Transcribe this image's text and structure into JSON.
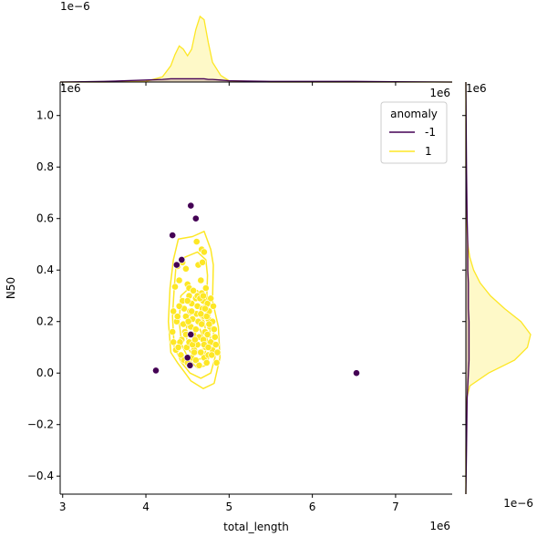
{
  "chart_data": {
    "type": "scatter",
    "xlabel": "total_length",
    "ylabel": "N50",
    "x_offset_label": "1e6",
    "y_offset_label": "1e6",
    "top_marginal_offset_label": "1e−6",
    "right_marginal_offset_label": "1e−6",
    "right_top_offset_label": "1e6",
    "xlim": [
      2.97,
      7.68
    ],
    "ylim": [
      -0.47,
      1.13
    ],
    "x_ticks": [
      3,
      4,
      5,
      6,
      7
    ],
    "y_ticks": [
      -0.4,
      -0.2,
      0.0,
      0.2,
      0.4,
      0.6,
      0.8,
      1.0
    ],
    "x_tick_labels": [
      "3",
      "4",
      "5",
      "6",
      "7"
    ],
    "y_tick_labels": [
      "−0.4",
      "−0.2",
      "0.0",
      "0.2",
      "0.4",
      "0.6",
      "0.8",
      "1.0"
    ],
    "legend": {
      "title": "anomaly",
      "placement": "top-right",
      "entries": [
        {
          "label": "-1",
          "color": "#440154"
        },
        {
          "label": "1",
          "color": "#fde725"
        }
      ]
    },
    "series": [
      {
        "name": "1",
        "color": "#fde725",
        "points": [
          [
            4.38,
            0.415
          ],
          [
            4.44,
            0.43
          ],
          [
            4.48,
            0.405
          ],
          [
            4.4,
            0.36
          ],
          [
            4.35,
            0.335
          ],
          [
            4.5,
            0.345
          ],
          [
            4.52,
            0.33
          ],
          [
            4.33,
            0.24
          ],
          [
            4.37,
            0.2
          ],
          [
            4.32,
            0.16
          ],
          [
            4.33,
            0.12
          ],
          [
            4.36,
            0.09
          ],
          [
            4.42,
            0.07
          ],
          [
            4.46,
            0.05
          ],
          [
            4.5,
            0.04
          ],
          [
            4.55,
            0.06
          ],
          [
            4.6,
            0.05
          ],
          [
            4.65,
            0.08
          ],
          [
            4.7,
            0.06
          ],
          [
            4.75,
            0.07
          ],
          [
            4.8,
            0.09
          ],
          [
            4.44,
            0.28
          ],
          [
            4.46,
            0.25
          ],
          [
            4.48,
            0.22
          ],
          [
            4.45,
            0.19
          ],
          [
            4.47,
            0.16
          ],
          [
            4.43,
            0.13
          ],
          [
            4.49,
            0.1
          ],
          [
            4.52,
            0.3
          ],
          [
            4.55,
            0.27
          ],
          [
            4.53,
            0.24
          ],
          [
            4.56,
            0.21
          ],
          [
            4.54,
            0.18
          ],
          [
            4.57,
            0.15
          ],
          [
            4.52,
            0.12
          ],
          [
            4.58,
            0.09
          ],
          [
            4.6,
            0.29
          ],
          [
            4.62,
            0.26
          ],
          [
            4.61,
            0.23
          ],
          [
            4.63,
            0.2
          ],
          [
            4.6,
            0.17
          ],
          [
            4.64,
            0.14
          ],
          [
            4.62,
            0.11
          ],
          [
            4.66,
            0.08
          ],
          [
            4.67,
            0.31
          ],
          [
            4.69,
            0.28
          ],
          [
            4.68,
            0.25
          ],
          [
            4.7,
            0.22
          ],
          [
            4.67,
            0.19
          ],
          [
            4.71,
            0.16
          ],
          [
            4.69,
            0.13
          ],
          [
            4.72,
            0.1
          ],
          [
            4.74,
            0.27
          ],
          [
            4.76,
            0.24
          ],
          [
            4.75,
            0.21
          ],
          [
            4.77,
            0.18
          ],
          [
            4.74,
            0.15
          ],
          [
            4.78,
            0.12
          ],
          [
            4.8,
            0.2
          ],
          [
            4.82,
            0.17
          ],
          [
            4.83,
            0.14
          ],
          [
            4.84,
            0.11
          ],
          [
            4.86,
            0.08
          ],
          [
            4.79,
            0.07
          ],
          [
            4.85,
            0.04
          ],
          [
            4.73,
            0.04
          ],
          [
            4.64,
            0.03
          ],
          [
            4.58,
            0.08
          ],
          [
            4.61,
            0.51
          ],
          [
            4.63,
            0.42
          ],
          [
            4.66,
            0.36
          ],
          [
            4.67,
            0.48
          ],
          [
            4.7,
            0.47
          ],
          [
            4.68,
            0.43
          ],
          [
            4.62,
            0.3
          ],
          [
            4.65,
            0.29
          ],
          [
            4.71,
            0.25
          ],
          [
            4.73,
            0.22
          ],
          [
            4.76,
            0.19
          ],
          [
            4.55,
            0.24
          ],
          [
            4.51,
            0.2
          ],
          [
            4.48,
            0.15
          ],
          [
            4.4,
            0.26
          ],
          [
            4.38,
            0.22
          ],
          [
            4.41,
            0.12
          ],
          [
            4.39,
            0.1
          ],
          [
            4.56,
            0.11
          ],
          [
            4.59,
            0.13
          ],
          [
            4.72,
            0.33
          ],
          [
            4.78,
            0.29
          ],
          [
            4.81,
            0.26
          ],
          [
            4.66,
            0.23
          ],
          [
            4.7,
            0.11
          ],
          [
            4.75,
            0.1
          ],
          [
            4.5,
            0.28
          ],
          [
            4.57,
            0.32
          ],
          [
            4.69,
            0.3
          ]
        ]
      },
      {
        "name": "-1",
        "color": "#440154",
        "points": [
          [
            4.54,
            0.65
          ],
          [
            4.6,
            0.6
          ],
          [
            4.32,
            0.535
          ],
          [
            4.43,
            0.44
          ],
          [
            4.37,
            0.42
          ],
          [
            4.54,
            0.15
          ],
          [
            4.5,
            0.06
          ],
          [
            4.53,
            0.03
          ],
          [
            4.12,
            0.01
          ],
          [
            6.53,
            0.0
          ]
        ]
      }
    ],
    "kde_contour_1": {
      "color": "#fde725",
      "levels": [
        [
          [
            4.33,
            0.44
          ],
          [
            4.39,
            0.52
          ],
          [
            4.56,
            0.53
          ],
          [
            4.7,
            0.55
          ],
          [
            4.78,
            0.48
          ],
          [
            4.81,
            0.42
          ],
          [
            4.8,
            0.28
          ],
          [
            4.87,
            0.18
          ],
          [
            4.89,
            0.06
          ],
          [
            4.82,
            -0.04
          ],
          [
            4.69,
            -0.06
          ],
          [
            4.54,
            -0.03
          ],
          [
            4.45,
            0.01
          ],
          [
            4.38,
            0.04
          ],
          [
            4.3,
            0.08
          ],
          [
            4.27,
            0.2
          ],
          [
            4.29,
            0.33
          ]
        ],
        [
          [
            4.36,
            0.41
          ],
          [
            4.47,
            0.45
          ],
          [
            4.62,
            0.47
          ],
          [
            4.72,
            0.44
          ],
          [
            4.74,
            0.38
          ],
          [
            4.73,
            0.28
          ],
          [
            4.81,
            0.16
          ],
          [
            4.83,
            0.06
          ],
          [
            4.78,
            0.0
          ],
          [
            4.66,
            -0.02
          ],
          [
            4.53,
            0.0
          ],
          [
            4.43,
            0.04
          ],
          [
            4.34,
            0.1
          ],
          [
            4.32,
            0.22
          ],
          [
            4.34,
            0.33
          ]
        ],
        [
          [
            4.42,
            0.3
          ],
          [
            4.52,
            0.33
          ],
          [
            4.62,
            0.32
          ],
          [
            4.7,
            0.27
          ],
          [
            4.77,
            0.17
          ],
          [
            4.78,
            0.08
          ],
          [
            4.72,
            0.03
          ],
          [
            4.62,
            0.02
          ],
          [
            4.52,
            0.05
          ],
          [
            4.43,
            0.11
          ],
          [
            4.4,
            0.2
          ]
        ],
        [
          [
            4.5,
            0.22
          ],
          [
            4.6,
            0.24
          ],
          [
            4.7,
            0.2
          ],
          [
            4.74,
            0.12
          ],
          [
            4.7,
            0.06
          ],
          [
            4.6,
            0.05
          ],
          [
            4.52,
            0.09
          ],
          [
            4.48,
            0.15
          ]
        ],
        [
          [
            4.58,
            0.16
          ],
          [
            4.65,
            0.17
          ],
          [
            4.71,
            0.12
          ],
          [
            4.67,
            0.08
          ],
          [
            4.6,
            0.09
          ]
        ]
      ]
    },
    "kde_contour_minus1": {
      "color": "#440154",
      "note_visible": false
    },
    "top_marginal": {
      "x": [
        2.97,
        3.5,
        4.0,
        4.2,
        4.3,
        4.35,
        4.4,
        4.45,
        4.5,
        4.55,
        4.6,
        4.65,
        4.7,
        4.75,
        4.8,
        4.9,
        5.0,
        5.5,
        6.0,
        6.5,
        7.0,
        7.68
      ],
      "density_1": [
        0,
        0,
        0.01,
        0.08,
        0.25,
        0.42,
        0.55,
        0.5,
        0.4,
        0.5,
        0.8,
        1.0,
        0.95,
        0.6,
        0.3,
        0.1,
        0.02,
        0,
        0,
        0,
        0,
        0
      ],
      "density_minus1": [
        0,
        0.01,
        0.03,
        0.04,
        0.05,
        0.05,
        0.05,
        0.05,
        0.05,
        0.05,
        0.05,
        0.05,
        0.05,
        0.04,
        0.04,
        0.03,
        0.02,
        0.01,
        0.01,
        0.01,
        0.005,
        0
      ]
    },
    "right_marginal": {
      "y": [
        -0.47,
        -0.3,
        -0.1,
        -0.05,
        0.0,
        0.05,
        0.1,
        0.15,
        0.2,
        0.25,
        0.3,
        0.35,
        0.4,
        0.45,
        0.5,
        0.6,
        0.8,
        1.13
      ],
      "density_1": [
        0,
        0,
        0.01,
        0.06,
        0.35,
        0.75,
        0.95,
        1.0,
        0.85,
        0.6,
        0.38,
        0.22,
        0.12,
        0.06,
        0.03,
        0.01,
        0,
        0
      ],
      "density_minus1": [
        0,
        0.01,
        0.02,
        0.03,
        0.04,
        0.05,
        0.05,
        0.05,
        0.05,
        0.04,
        0.04,
        0.04,
        0.03,
        0.03,
        0.03,
        0.02,
        0.01,
        0
      ]
    }
  }
}
